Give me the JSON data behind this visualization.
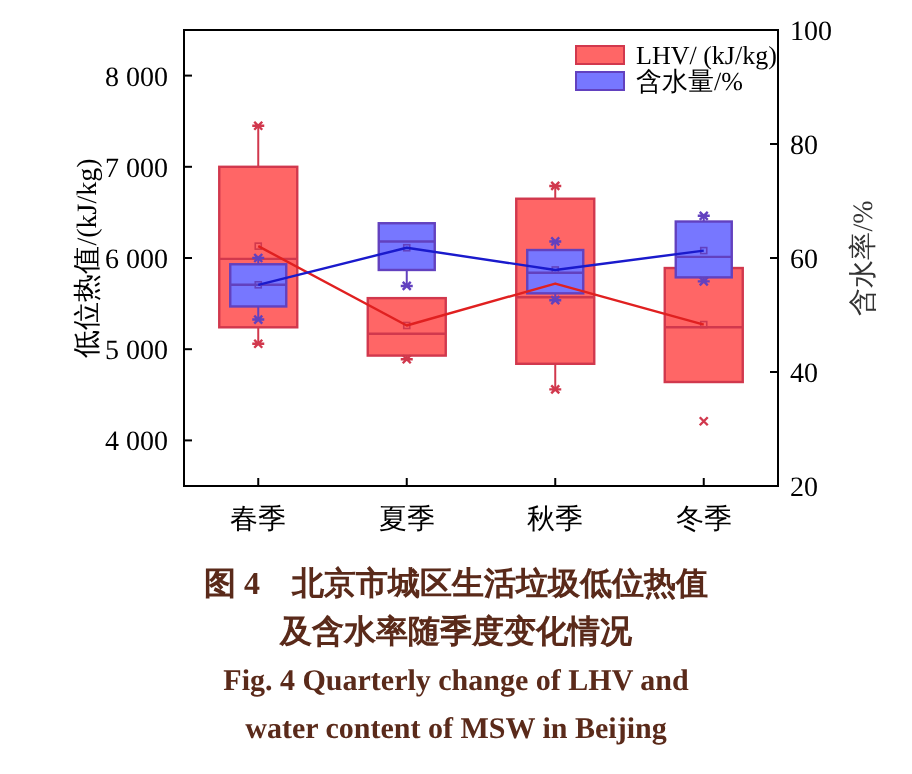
{
  "chart_data": {
    "type": "box",
    "categories": [
      "春季",
      "夏季",
      "秋季",
      "冬季"
    ],
    "ylabel": "低位热值/(kJ/kg)",
    "y2label": "含水率/%",
    "ylim": [
      3500,
      8500
    ],
    "yticks": [
      {
        "value": 4000,
        "label": "4 000"
      },
      {
        "value": 5000,
        "label": "5 000"
      },
      {
        "value": 6000,
        "label": "6 000"
      },
      {
        "value": 7000,
        "label": "7 000"
      },
      {
        "value": 8000,
        "label": "8 000"
      }
    ],
    "y2lim": [
      20,
      100
    ],
    "y2ticks": [
      20,
      40,
      60,
      80,
      100
    ],
    "legend": "top right",
    "grid": false,
    "series": [
      {
        "name": "LHV/ (kJ/kg)",
        "color": "#ff6666",
        "boxes": [
          {
            "low": 5060,
            "q1": 5240,
            "median": 5990,
            "q3": 7000,
            "high": 7450,
            "mean": 6130
          },
          {
            "low": 4890,
            "q1": 4930,
            "median": 5170,
            "q3": 5560,
            "high": 5560,
            "mean": 5260
          },
          {
            "low": 4560,
            "q1": 4840,
            "median": 5570,
            "q3": 6650,
            "high": 6790,
            "mean": 5720
          },
          {
            "low": 4640,
            "q1": 4640,
            "median": 5240,
            "q3": 5890,
            "high": 5890,
            "mean": 5270,
            "outliers": [
              4210
            ]
          }
        ]
      },
      {
        "name": "含水量/%",
        "color": "#7777ff",
        "axis": "y2",
        "boxes": [
          {
            "low": 49.2,
            "q1": 51.5,
            "median": 55.3,
            "q3": 58.9,
            "high": 60.0,
            "mean": 55.3
          },
          {
            "low": 55.1,
            "q1": 57.9,
            "median": 62.9,
            "q3": 66.1,
            "high": 66.1,
            "mean": 61.8
          },
          {
            "low": 52.6,
            "q1": 53.8,
            "median": 57.4,
            "q3": 61.4,
            "high": 62.9,
            "mean": 57.9
          },
          {
            "low": 55.9,
            "q1": 56.6,
            "median": 60.2,
            "q3": 66.4,
            "high": 67.4,
            "mean": 61.3
          }
        ]
      },
      {
        "type": "line",
        "color": "#e02020",
        "values": [
          6130,
          5260,
          5720,
          5270
        ]
      },
      {
        "type": "line",
        "color": "#1a1acc",
        "axis": "y2",
        "values": [
          55.3,
          61.8,
          57.9,
          61.3
        ]
      }
    ],
    "annotations": [
      "图 4　北京市城区生活垃圾低位热值",
      "及含水率随季度变化情况",
      "Fig. 4 Quarterly change of LHV and",
      "water content of MSW in Beijing"
    ]
  }
}
